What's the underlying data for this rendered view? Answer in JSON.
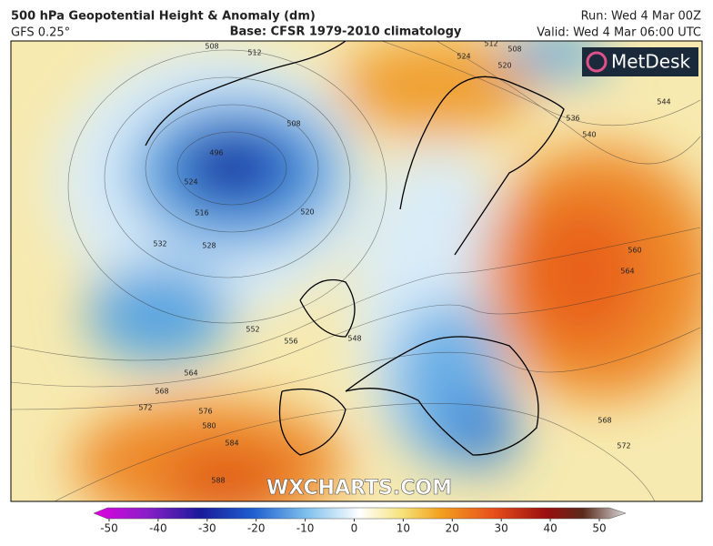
{
  "header": {
    "title": "500 hPa Geopotential Height & Anomaly (dm)",
    "model": "GFS 0.25°",
    "base": "Base: CFSR 1979-2010 climatology",
    "run": "Run: Wed 4 Mar 00Z",
    "valid": "Valid: Wed 4 Mar 06:00 UTC"
  },
  "map": {
    "brand": "MetDesk",
    "watermark": "WXCHARTS.COM",
    "contour_labels": [
      508,
      512,
      508,
      496,
      524,
      516,
      520,
      532,
      528,
      552,
      556,
      548,
      564,
      568,
      572,
      576,
      580,
      584,
      588,
      512,
      508,
      524,
      520,
      536,
      540,
      544,
      560,
      564,
      568,
      572
    ]
  },
  "colorbar": {
    "lim": [
      -50,
      50
    ],
    "ticks": [
      -50,
      -40,
      -30,
      -20,
      -10,
      0,
      10,
      20,
      30,
      40,
      50
    ]
  }
}
